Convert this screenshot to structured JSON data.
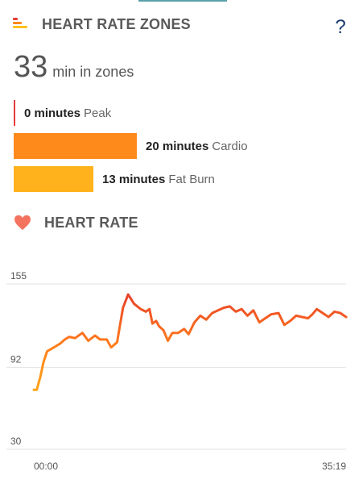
{
  "heart_rate_zones": {
    "title": "HEART RATE ZONES",
    "help_icon": "?",
    "total_minutes": "33",
    "total_suffix": "min in zones",
    "zones": [
      {
        "minutes_text": "0 minutes",
        "name": "Peak",
        "minutes": 0,
        "color": "#e53c3c"
      },
      {
        "minutes_text": "20 minutes",
        "name": "Cardio",
        "minutes": 20,
        "color": "#ff8a1c"
      },
      {
        "minutes_text": "13 minutes",
        "name": "Fat Burn",
        "minutes": 13,
        "color": "#ffb21c"
      }
    ]
  },
  "heart_rate": {
    "title": "HEART RATE",
    "icon": "heart-icon",
    "icon_color": "#f4735f"
  },
  "chart_data": {
    "type": "line",
    "title": "",
    "xlabel": "",
    "ylabel": "",
    "y_ticks": [
      "155",
      "92",
      "30"
    ],
    "ylim": [
      30,
      155
    ],
    "x_ticks": [
      "00:00",
      "35:19"
    ],
    "xlim": [
      "00:00",
      "35:19"
    ],
    "grid": true,
    "gradient_colors": [
      "#ffa41c",
      "#ff7a1c",
      "#e8422a"
    ],
    "series": [
      {
        "x": [
          "00:00",
          "00:20",
          "00:45",
          "01:06",
          "01:30",
          "02:00",
          "02:30",
          "03:00",
          "03:30",
          "04:00",
          "04:40",
          "05:30",
          "06:10",
          "06:55",
          "07:30",
          "08:15",
          "08:45",
          "09:25",
          "10:05",
          "10:40",
          "11:20",
          "12:05",
          "12:40",
          "13:05",
          "13:25",
          "13:50",
          "14:10",
          "14:40",
          "15:10",
          "15:40",
          "16:20",
          "17:00",
          "17:30",
          "18:10",
          "18:50",
          "19:30",
          "20:10",
          "20:50",
          "21:30",
          "22:10",
          "22:50",
          "23:30",
          "24:10",
          "24:50",
          "25:30",
          "26:10",
          "26:50",
          "27:40",
          "28:20",
          "29:00",
          "29:40",
          "30:20",
          "31:00",
          "31:30",
          "32:00",
          "32:40",
          "33:20",
          "34:00",
          "34:40",
          "35:19"
        ],
        "values": [
          75,
          75,
          85,
          96,
          104,
          106,
          108,
          110,
          113,
          115,
          114,
          118,
          112,
          116,
          113,
          113,
          107,
          111,
          137,
          147,
          140,
          136,
          134,
          136,
          125,
          127,
          123,
          120,
          112,
          118,
          118,
          121,
          117,
          126,
          131,
          128,
          133,
          135,
          137,
          138,
          134,
          136,
          131,
          135,
          126,
          129,
          132,
          133,
          124,
          127,
          131,
          130,
          129,
          132,
          136,
          133,
          130,
          134,
          133,
          130
        ]
      }
    ]
  }
}
